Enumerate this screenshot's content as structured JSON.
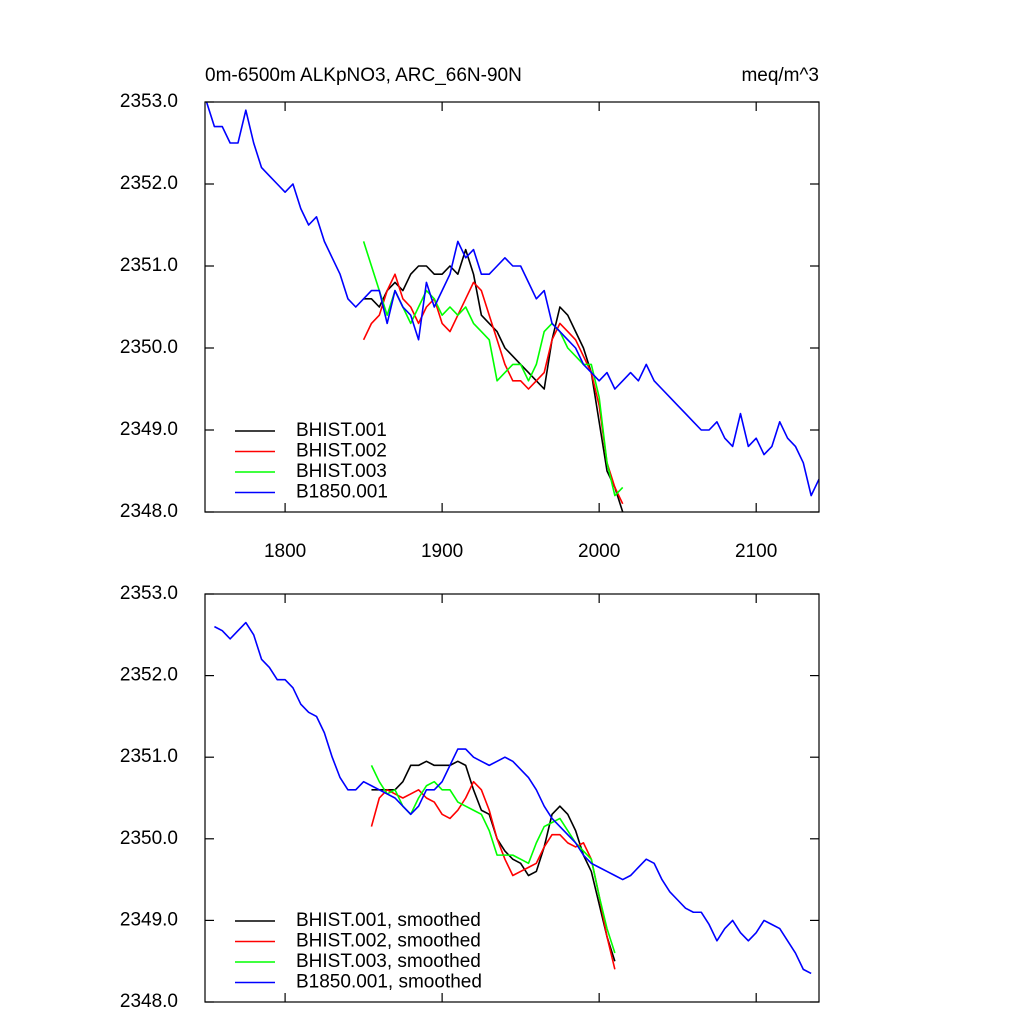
{
  "chart_data": [
    {
      "type": "line",
      "title": "0m-6500m ALKpNO3, ARC_66N-90N",
      "units": "meq/m^3",
      "xlim": [
        1749,
        2140
      ],
      "xticks": [
        1800,
        1900,
        2000,
        2100
      ],
      "xtick_labels": true,
      "ylim": [
        2348,
        2353
      ],
      "yticks": [
        {
          "value": 2348,
          "label": "2348.0"
        },
        {
          "value": 2349,
          "label": "2349.0"
        },
        {
          "value": 2350,
          "label": "2350.0"
        },
        {
          "value": 2351,
          "label": "2351.0"
        },
        {
          "value": 2352,
          "label": "2352.0"
        },
        {
          "value": 2353,
          "label": "2353.0"
        }
      ],
      "legend": "lower left",
      "series": [
        {
          "name": "BHIST.001",
          "color": "#000000",
          "x": [
            1850,
            1855,
            1860,
            1865,
            1870,
            1875,
            1880,
            1885,
            1890,
            1895,
            1900,
            1905,
            1910,
            1915,
            1920,
            1925,
            1930,
            1935,
            1940,
            1945,
            1950,
            1955,
            1960,
            1965,
            1970,
            1975,
            1980,
            1985,
            1990,
            1995,
            2000,
            2005,
            2010,
            2015
          ],
          "values": [
            2350.6,
            2350.6,
            2350.5,
            2350.7,
            2350.8,
            2350.7,
            2350.9,
            2351.0,
            2351.0,
            2350.9,
            2350.9,
            2351.0,
            2350.9,
            2351.2,
            2350.9,
            2350.4,
            2350.3,
            2350.2,
            2350.0,
            2349.9,
            2349.8,
            2349.7,
            2349.6,
            2349.5,
            2350.1,
            2350.5,
            2350.4,
            2350.2,
            2350.0,
            2349.7,
            2349.1,
            2348.5,
            2348.3,
            2348.0
          ]
        },
        {
          "name": "BHIST.002",
          "color": "#ff0000",
          "x": [
            1850,
            1855,
            1860,
            1865,
            1870,
            1875,
            1880,
            1885,
            1890,
            1895,
            1900,
            1905,
            1910,
            1915,
            1920,
            1925,
            1930,
            1935,
            1940,
            1945,
            1950,
            1955,
            1960,
            1965,
            1970,
            1975,
            1980,
            1985,
            1990,
            1995,
            2000,
            2005,
            2010,
            2015
          ],
          "values": [
            2350.1,
            2350.3,
            2350.4,
            2350.7,
            2350.9,
            2350.6,
            2350.5,
            2350.3,
            2350.5,
            2350.6,
            2350.3,
            2350.2,
            2350.4,
            2350.6,
            2350.8,
            2350.7,
            2350.4,
            2350.1,
            2349.8,
            2349.6,
            2349.6,
            2349.5,
            2349.6,
            2349.7,
            2350.1,
            2350.3,
            2350.2,
            2350.1,
            2349.9,
            2349.7,
            2349.3,
            2348.6,
            2348.3,
            2348.1
          ]
        },
        {
          "name": "BHIST.003",
          "color": "#00ff00",
          "x": [
            1850,
            1855,
            1860,
            1865,
            1870,
            1875,
            1880,
            1885,
            1890,
            1895,
            1900,
            1905,
            1910,
            1915,
            1920,
            1925,
            1930,
            1935,
            1940,
            1945,
            1950,
            1955,
            1960,
            1965,
            1970,
            1975,
            1980,
            1985,
            1990,
            1995,
            2000,
            2005,
            2010,
            2015
          ],
          "values": [
            2351.3,
            2351.0,
            2350.7,
            2350.4,
            2350.7,
            2350.5,
            2350.3,
            2350.5,
            2350.7,
            2350.6,
            2350.4,
            2350.5,
            2350.4,
            2350.5,
            2350.3,
            2350.2,
            2350.1,
            2349.6,
            2349.7,
            2349.8,
            2349.8,
            2349.6,
            2349.8,
            2350.2,
            2350.3,
            2350.2,
            2350.0,
            2349.9,
            2349.8,
            2349.8,
            2349.4,
            2348.6,
            2348.2,
            2348.3
          ]
        },
        {
          "name": "B1850.001",
          "color": "#0000ff",
          "x": [
            1750,
            1755,
            1760,
            1765,
            1770,
            1775,
            1780,
            1785,
            1790,
            1795,
            1800,
            1805,
            1810,
            1815,
            1820,
            1825,
            1830,
            1835,
            1840,
            1845,
            1850,
            1855,
            1860,
            1865,
            1870,
            1875,
            1880,
            1885,
            1890,
            1895,
            1900,
            1905,
            1910,
            1915,
            1920,
            1925,
            1930,
            1935,
            1940,
            1945,
            1950,
            1955,
            1960,
            1965,
            1970,
            1975,
            1980,
            1985,
            1990,
            1995,
            2000,
            2005,
            2010,
            2015,
            2020,
            2025,
            2030,
            2035,
            2040,
            2045,
            2050,
            2055,
            2060,
            2065,
            2070,
            2075,
            2080,
            2085,
            2090,
            2095,
            2100,
            2105,
            2110,
            2115,
            2120,
            2125,
            2130,
            2135,
            2140
          ],
          "values": [
            2353.0,
            2352.7,
            2352.7,
            2352.5,
            2352.5,
            2352.9,
            2352.5,
            2352.2,
            2352.1,
            2352.0,
            2351.9,
            2352.0,
            2351.7,
            2351.5,
            2351.6,
            2351.3,
            2351.1,
            2350.9,
            2350.6,
            2350.5,
            2350.6,
            2350.7,
            2350.7,
            2350.3,
            2350.7,
            2350.5,
            2350.4,
            2350.1,
            2350.8,
            2350.5,
            2350.7,
            2350.9,
            2351.3,
            2351.1,
            2351.2,
            2350.9,
            2350.9,
            2351.0,
            2351.1,
            2351.0,
            2351.0,
            2350.8,
            2350.6,
            2350.7,
            2350.3,
            2350.2,
            2350.1,
            2350.0,
            2349.8,
            2349.7,
            2349.6,
            2349.7,
            2349.5,
            2349.6,
            2349.7,
            2349.6,
            2349.8,
            2349.6,
            2349.5,
            2349.4,
            2349.3,
            2349.2,
            2349.1,
            2349.0,
            2349.0,
            2349.1,
            2348.9,
            2348.8,
            2349.2,
            2348.8,
            2348.9,
            2348.7,
            2348.8,
            2349.1,
            2348.9,
            2348.8,
            2348.6,
            2348.2,
            2348.4
          ]
        }
      ]
    },
    {
      "type": "line",
      "xlim": [
        1749,
        2140
      ],
      "xticks": [
        1800,
        1900,
        2000,
        2100
      ],
      "xtick_labels": false,
      "ylim": [
        2348,
        2353
      ],
      "yticks": [
        {
          "value": 2348,
          "label": "2348.0"
        },
        {
          "value": 2349,
          "label": "2349.0"
        },
        {
          "value": 2350,
          "label": "2350.0"
        },
        {
          "value": 2351,
          "label": "2351.0"
        },
        {
          "value": 2352,
          "label": "2352.0"
        },
        {
          "value": 2353,
          "label": "2353.0"
        }
      ],
      "legend": "lower left",
      "series": [
        {
          "name": "BHIST.001, smoothed",
          "color": "#000000",
          "x": [
            1855,
            1860,
            1865,
            1870,
            1875,
            1880,
            1885,
            1890,
            1895,
            1900,
            1905,
            1910,
            1915,
            1920,
            1925,
            1930,
            1935,
            1940,
            1945,
            1950,
            1955,
            1960,
            1965,
            1970,
            1975,
            1980,
            1985,
            1990,
            1995,
            2000,
            2005,
            2010
          ],
          "values": [
            2350.6,
            2350.6,
            2350.6,
            2350.6,
            2350.7,
            2350.9,
            2350.9,
            2350.95,
            2350.9,
            2350.9,
            2350.9,
            2350.95,
            2350.9,
            2350.6,
            2350.35,
            2350.3,
            2350.0,
            2349.85,
            2349.75,
            2349.7,
            2349.55,
            2349.6,
            2349.9,
            2350.3,
            2350.4,
            2350.3,
            2350.1,
            2349.8,
            2349.6,
            2349.2,
            2348.8,
            2348.5
          ]
        },
        {
          "name": "BHIST.002, smoothed",
          "color": "#ff0000",
          "x": [
            1855,
            1860,
            1865,
            1870,
            1875,
            1880,
            1885,
            1890,
            1895,
            1900,
            1905,
            1910,
            1915,
            1920,
            1925,
            1930,
            1935,
            1940,
            1945,
            1950,
            1955,
            1960,
            1965,
            1970,
            1975,
            1980,
            1985,
            1990,
            1995,
            2000,
            2005,
            2010
          ],
          "values": [
            2350.15,
            2350.5,
            2350.6,
            2350.55,
            2350.5,
            2350.55,
            2350.6,
            2350.5,
            2350.45,
            2350.3,
            2350.25,
            2350.35,
            2350.5,
            2350.7,
            2350.6,
            2350.35,
            2350.0,
            2349.75,
            2349.55,
            2349.6,
            2349.65,
            2349.7,
            2349.9,
            2350.05,
            2350.05,
            2349.95,
            2349.9,
            2349.95,
            2349.75,
            2349.3,
            2348.8,
            2348.4
          ]
        },
        {
          "name": "BHIST.003, smoothed",
          "color": "#00ff00",
          "x": [
            1855,
            1860,
            1865,
            1870,
            1875,
            1880,
            1885,
            1890,
            1895,
            1900,
            1905,
            1910,
            1915,
            1920,
            1925,
            1930,
            1935,
            1940,
            1945,
            1950,
            1955,
            1960,
            1965,
            1970,
            1975,
            1980,
            1985,
            1990,
            1995,
            2000,
            2005,
            2010
          ],
          "values": [
            2350.9,
            2350.7,
            2350.55,
            2350.6,
            2350.4,
            2350.3,
            2350.5,
            2350.65,
            2350.7,
            2350.6,
            2350.6,
            2350.45,
            2350.4,
            2350.35,
            2350.3,
            2350.1,
            2349.8,
            2349.8,
            2349.8,
            2349.75,
            2349.7,
            2349.95,
            2350.15,
            2350.2,
            2350.25,
            2350.1,
            2349.95,
            2349.85,
            2349.75,
            2349.3,
            2348.9,
            2348.6
          ]
        },
        {
          "name": "B1850.001, smoothed",
          "color": "#0000ff",
          "x": [
            1755,
            1760,
            1765,
            1770,
            1775,
            1780,
            1785,
            1790,
            1795,
            1800,
            1805,
            1810,
            1815,
            1820,
            1825,
            1830,
            1835,
            1840,
            1845,
            1850,
            1855,
            1860,
            1865,
            1870,
            1875,
            1880,
            1885,
            1890,
            1895,
            1900,
            1905,
            1910,
            1915,
            1920,
            1925,
            1930,
            1935,
            1940,
            1945,
            1950,
            1955,
            1960,
            1965,
            1970,
            1975,
            1980,
            1985,
            1990,
            1995,
            2000,
            2005,
            2010,
            2015,
            2020,
            2025,
            2030,
            2035,
            2040,
            2045,
            2050,
            2055,
            2060,
            2065,
            2070,
            2075,
            2080,
            2085,
            2090,
            2095,
            2100,
            2105,
            2110,
            2115,
            2120,
            2125,
            2130,
            2135
          ],
          "values": [
            2352.6,
            2352.55,
            2352.45,
            2352.55,
            2352.65,
            2352.5,
            2352.2,
            2352.1,
            2351.95,
            2351.95,
            2351.85,
            2351.65,
            2351.55,
            2351.5,
            2351.3,
            2351.0,
            2350.75,
            2350.6,
            2350.6,
            2350.7,
            2350.65,
            2350.6,
            2350.55,
            2350.5,
            2350.4,
            2350.3,
            2350.4,
            2350.6,
            2350.6,
            2350.7,
            2350.9,
            2351.1,
            2351.1,
            2351.0,
            2350.95,
            2350.9,
            2350.95,
            2351.0,
            2350.95,
            2350.85,
            2350.75,
            2350.6,
            2350.4,
            2350.25,
            2350.15,
            2350.05,
            2349.95,
            2349.8,
            2349.7,
            2349.65,
            2349.6,
            2349.55,
            2349.5,
            2349.55,
            2349.65,
            2349.75,
            2349.7,
            2349.5,
            2349.35,
            2349.25,
            2349.15,
            2349.1,
            2349.1,
            2348.95,
            2348.75,
            2348.9,
            2349.0,
            2348.85,
            2348.75,
            2348.85,
            2349.0,
            2348.95,
            2348.9,
            2348.75,
            2348.6,
            2348.4,
            2348.35
          ]
        }
      ]
    }
  ]
}
